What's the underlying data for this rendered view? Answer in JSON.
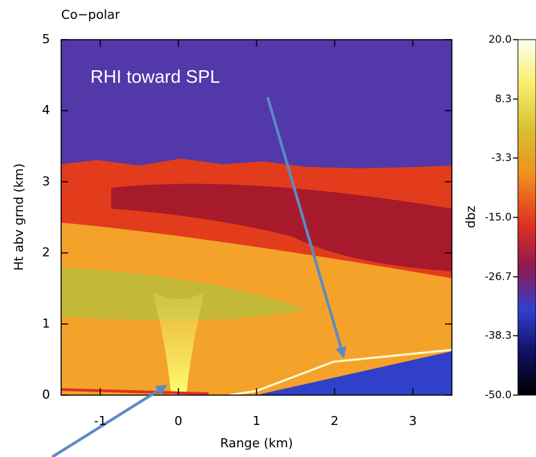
{
  "chart_data": {
    "type": "heatmap",
    "title": "Co−polar",
    "xlabel": "Range (km)",
    "ylabel": "Ht abv grnd (km)",
    "xlim": [
      -1.5,
      3.5
    ],
    "ylim": [
      0,
      5
    ],
    "xticks": [
      -1,
      0,
      1,
      2,
      3
    ],
    "yticks": [
      0,
      1,
      2,
      3,
      4,
      5
    ],
    "colorbar": {
      "label": "dbz",
      "lim": [
        -50,
        20
      ],
      "ticks": [
        {
          "value": 20,
          "label": "20.0"
        },
        8.3,
        -3.3,
        {
          "value": -15,
          "label": "-15.0"
        },
        -26.7,
        -38.3,
        {
          "value": -50,
          "label": "-50.0"
        }
      ]
    },
    "annotation": "RHI toward SPL"
  }
}
